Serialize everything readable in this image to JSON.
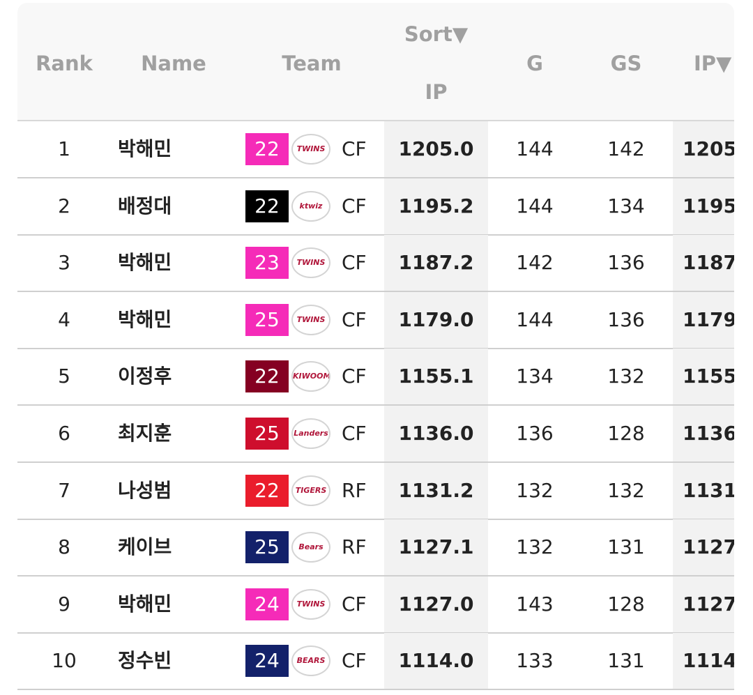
{
  "header": {
    "rank": "Rank",
    "name": "Name",
    "team": "Team",
    "sort": "Sort▼",
    "sort_col": "IP",
    "g": "G",
    "gs": "GS",
    "ip": "IP▼"
  },
  "rows": [
    {
      "rank": "1",
      "name": "박해민",
      "year": "22",
      "badge_color": "#f52bb8",
      "logo": "TWINS",
      "pos": "CF",
      "ip": "1205.0",
      "g": "144",
      "gs": "142"
    },
    {
      "rank": "2",
      "name": "배정대",
      "year": "22",
      "badge_color": "#000000",
      "logo": "ktwiz",
      "pos": "CF",
      "ip": "1195.2",
      "g": "144",
      "gs": "134"
    },
    {
      "rank": "3",
      "name": "박해민",
      "year": "23",
      "badge_color": "#f52bb8",
      "logo": "TWINS",
      "pos": "CF",
      "ip": "1187.2",
      "g": "142",
      "gs": "136"
    },
    {
      "rank": "4",
      "name": "박해민",
      "year": "25",
      "badge_color": "#f52bb8",
      "logo": "TWINS",
      "pos": "CF",
      "ip": "1179.0",
      "g": "144",
      "gs": "136"
    },
    {
      "rank": "5",
      "name": "이정후",
      "year": "22",
      "badge_color": "#850022",
      "logo": "KIWOOM",
      "pos": "CF",
      "ip": "1155.1",
      "g": "134",
      "gs": "132"
    },
    {
      "rank": "6",
      "name": "최지훈",
      "year": "25",
      "badge_color": "#ce0e2d",
      "logo": "Landers",
      "pos": "CF",
      "ip": "1136.0",
      "g": "136",
      "gs": "128"
    },
    {
      "rank": "7",
      "name": "나성범",
      "year": "22",
      "badge_color": "#ea1d2c",
      "logo": "TIGERS",
      "pos": "RF",
      "ip": "1131.2",
      "g": "132",
      "gs": "132"
    },
    {
      "rank": "8",
      "name": "케이브",
      "year": "25",
      "badge_color": "#13216a",
      "logo": "Bears",
      "pos": "RF",
      "ip": "1127.1",
      "g": "132",
      "gs": "131"
    },
    {
      "rank": "9",
      "name": "박해민",
      "year": "24",
      "badge_color": "#f52bb8",
      "logo": "TWINS",
      "pos": "CF",
      "ip": "1127.0",
      "g": "143",
      "gs": "128"
    },
    {
      "rank": "10",
      "name": "정수빈",
      "year": "24",
      "badge_color": "#13216a",
      "logo": "BEARS",
      "pos": "CF",
      "ip": "1114.0",
      "g": "133",
      "gs": "131"
    }
  ]
}
